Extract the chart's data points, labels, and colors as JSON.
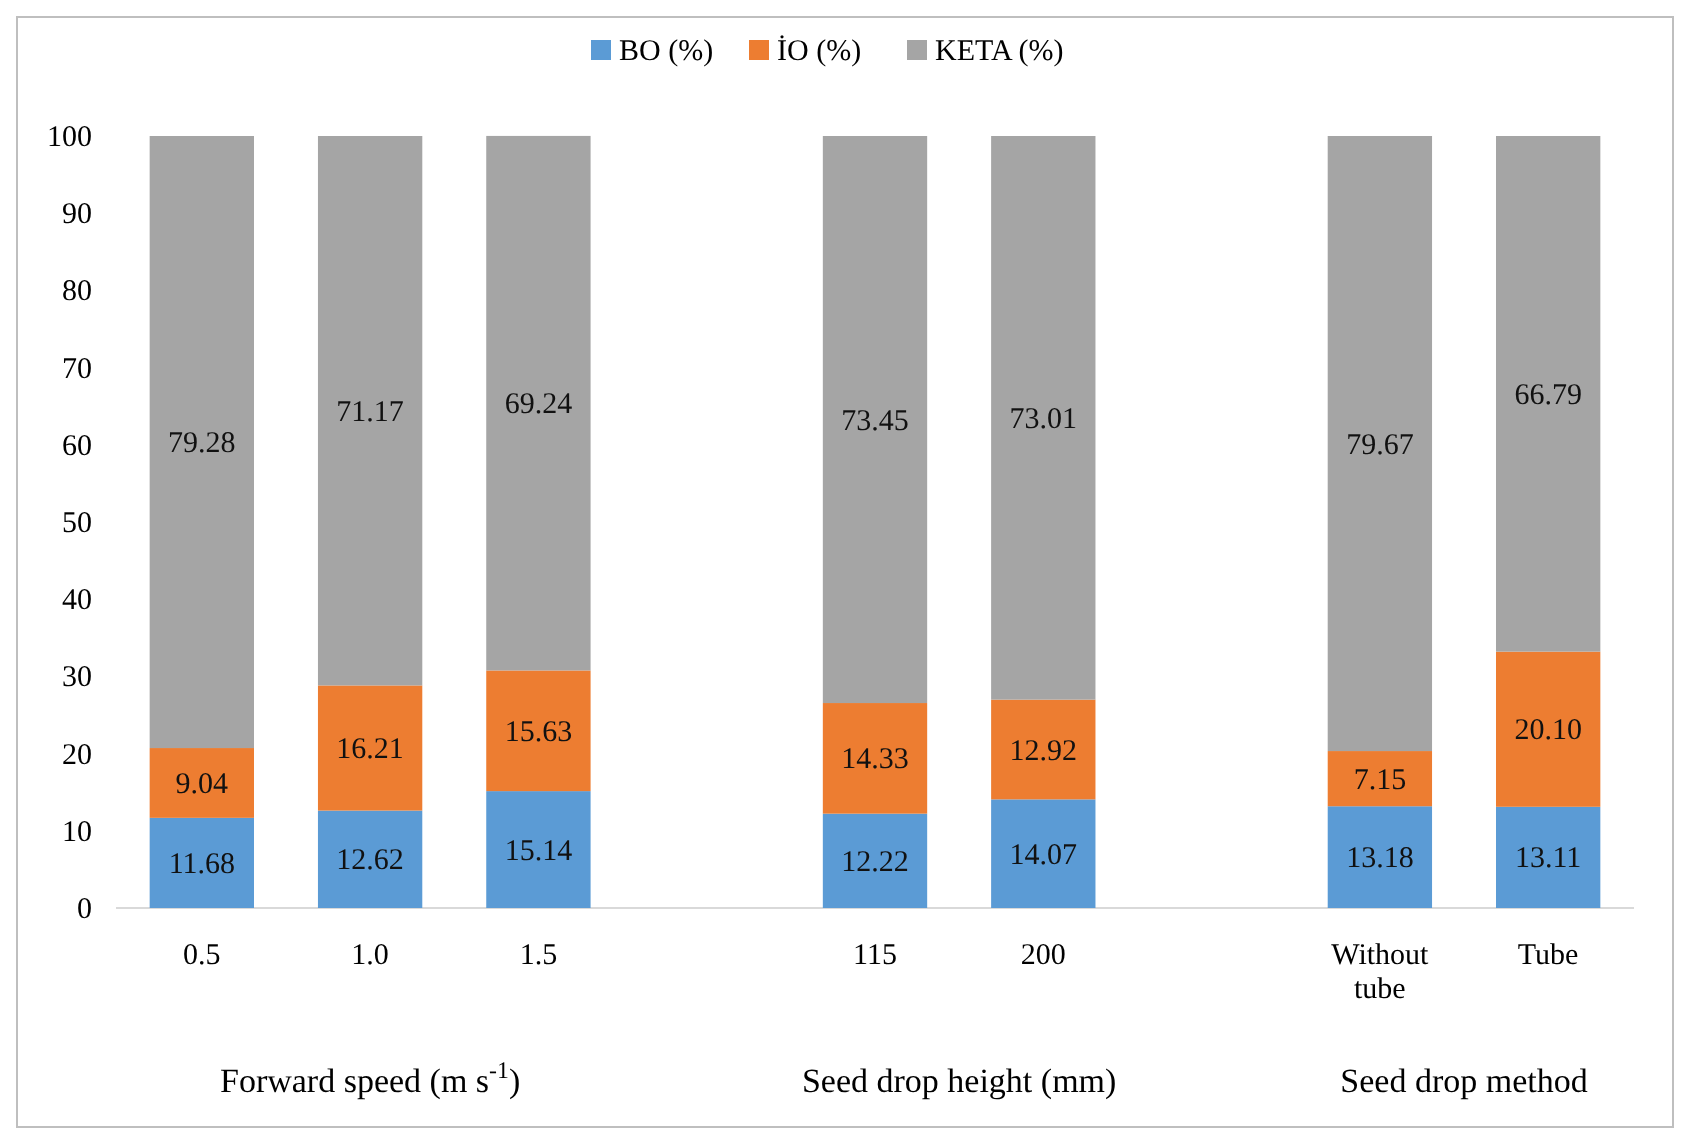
{
  "chart_data": {
    "type": "bar",
    "stacked": true,
    "categories": [
      "0.5",
      "1.0",
      "1.5",
      null,
      "115",
      "200",
      null,
      "Without tube",
      "Tube"
    ],
    "series": [
      {
        "name": "BO (%)",
        "color": "#5b9bd5",
        "values": [
          11.68,
          12.62,
          15.14,
          null,
          12.22,
          14.07,
          null,
          13.18,
          13.11
        ],
        "value_labels": [
          "11.68",
          "12.62",
          "15.14",
          null,
          "12.22",
          "14.07",
          null,
          "13.18",
          "13.11"
        ]
      },
      {
        "name": "İO (%)",
        "color": "#ed7d31",
        "values": [
          9.04,
          16.21,
          15.63,
          null,
          14.33,
          12.92,
          null,
          7.15,
          20.1
        ],
        "value_labels": [
          "9.04",
          "16.21",
          "15.63",
          null,
          "14.33",
          "12.92",
          null,
          "7.15",
          "20.10"
        ]
      },
      {
        "name": "KETA (%)",
        "color": "#a5a5a5",
        "values": [
          79.28,
          71.17,
          69.24,
          null,
          73.45,
          73.01,
          null,
          79.67,
          66.79
        ],
        "value_labels": [
          "79.28",
          "71.17",
          "69.24",
          null,
          "73.45",
          "73.01",
          null,
          "79.67",
          "66.79"
        ]
      }
    ],
    "ylim": [
      0,
      100
    ],
    "yticks": [
      0,
      10,
      20,
      30,
      40,
      50,
      60,
      70,
      80,
      90,
      100
    ],
    "grid": false,
    "legend": "top",
    "annotations": [
      "Forward speed (m s$^{-1}$)",
      "Seed drop height (mm)",
      "Seed drop method"
    ]
  }
}
